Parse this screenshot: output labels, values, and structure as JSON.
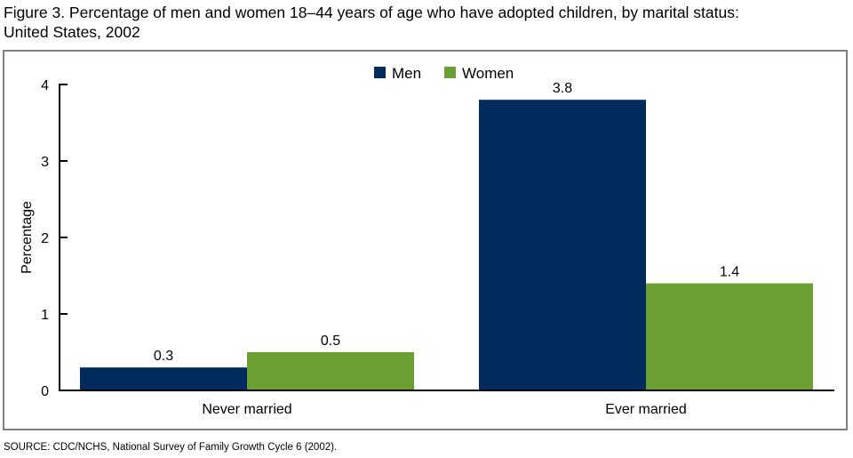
{
  "title_line1": "Figure 3. Percentage of men and women 18–44 years of age who have adopted children, by marital status:",
  "title_line2": "United States, 2002",
  "source": "SOURCE: CDC/NCHS, National Survey of Family Growth Cycle 6 (2002).",
  "colors": {
    "men": "#002b5c",
    "women": "#6b9e33"
  },
  "chart_data": {
    "type": "bar",
    "title": "Figure 3. Percentage of men and women 18–44 years of age who have adopted children, by marital status: United States, 2002",
    "categories": [
      "Never married",
      "Ever married"
    ],
    "series": [
      {
        "name": "Men",
        "values": [
          0.3,
          3.8
        ],
        "labels": [
          "0.3",
          "3.8"
        ]
      },
      {
        "name": "Women",
        "values": [
          0.5,
          1.4
        ],
        "labels": [
          "0.5",
          "1.4"
        ]
      }
    ],
    "xlabel": "",
    "ylabel": "Percentage",
    "ylim": [
      0,
      4
    ],
    "yticks": [
      "0",
      "1",
      "2",
      "3",
      "4"
    ],
    "legend": "top-center",
    "grid": false
  }
}
